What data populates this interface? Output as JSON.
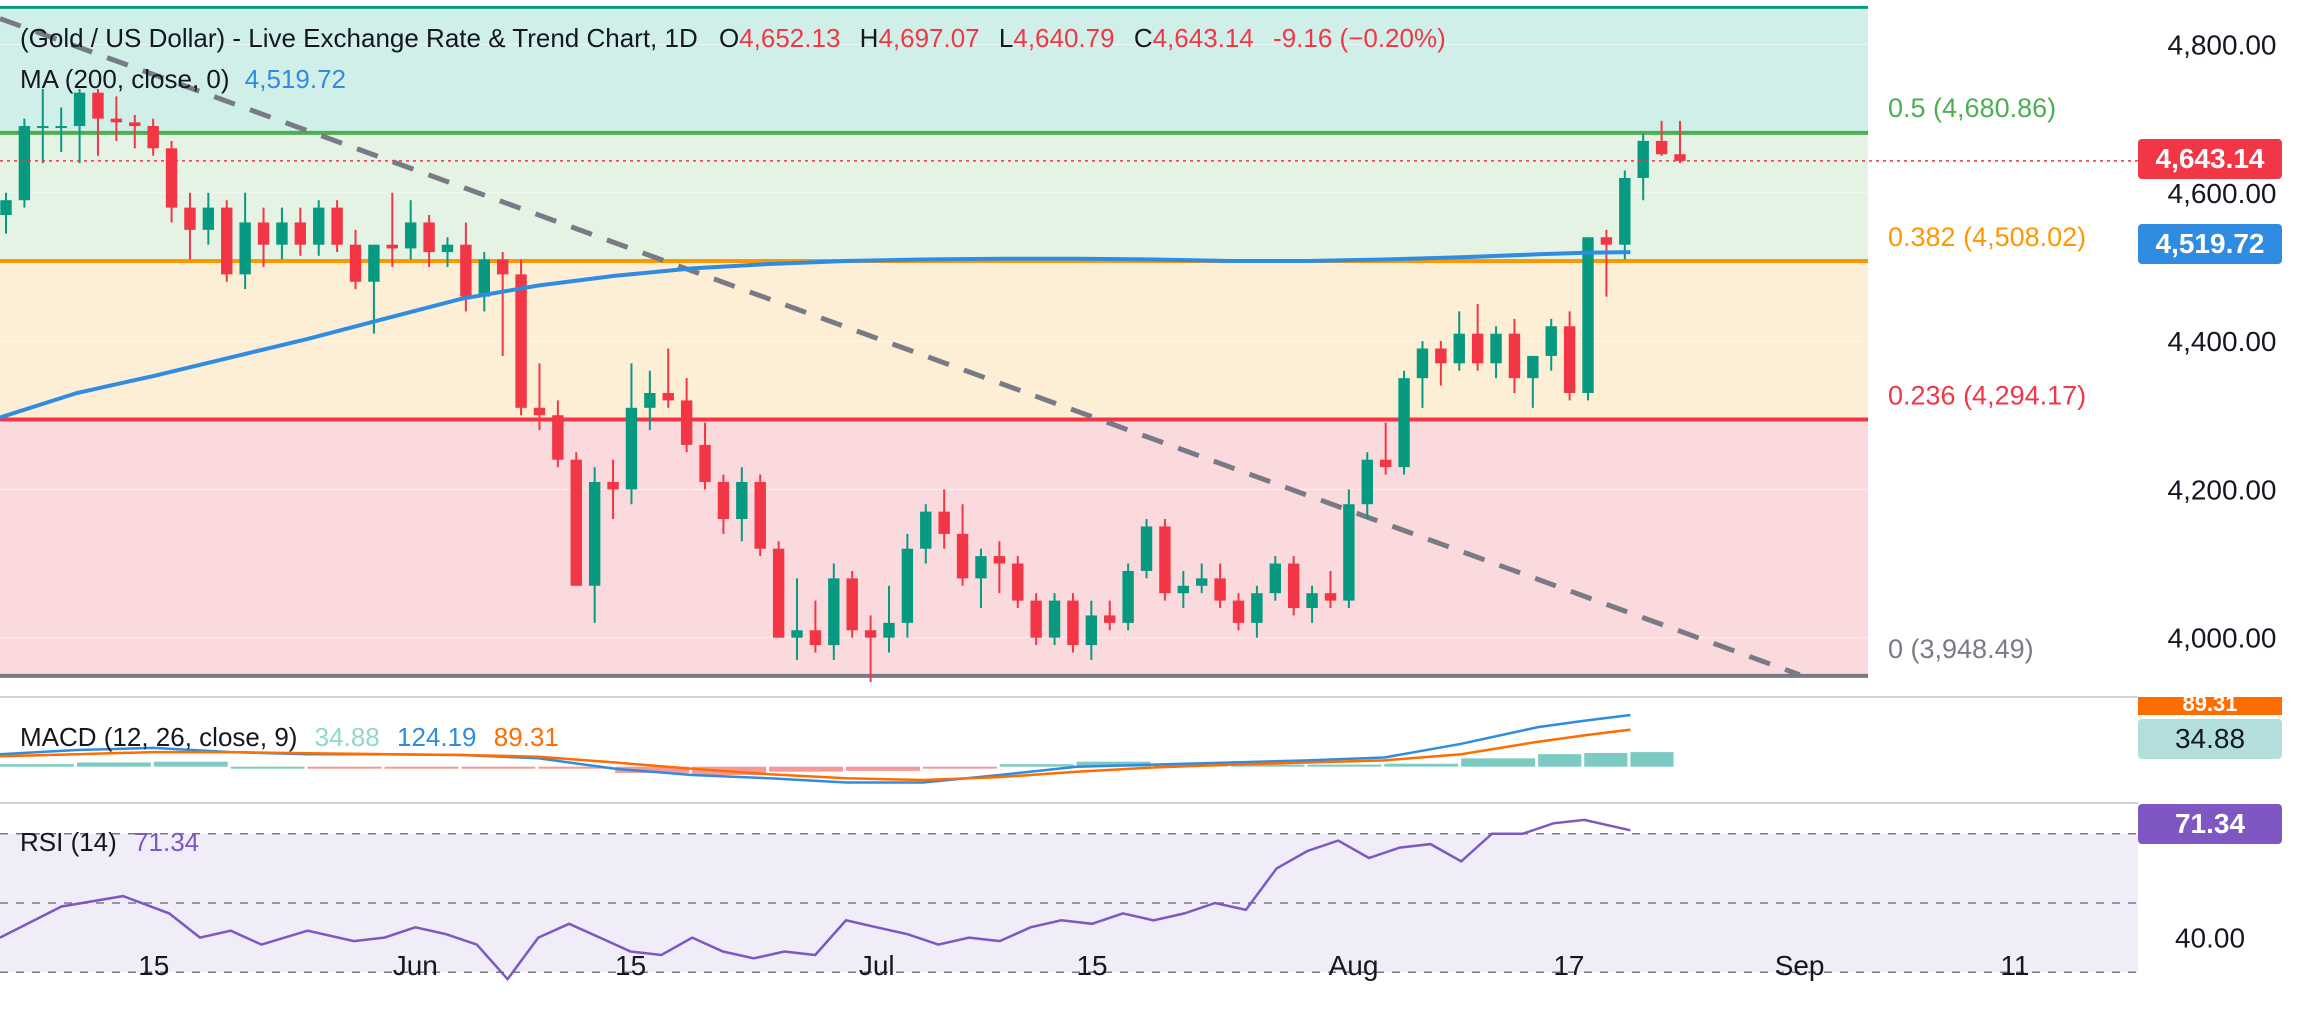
{
  "chart_data": {
    "type": "candlestick",
    "title": "(Gold / US Dollar) - Live Exchange Rate & Trend Chart, 1D",
    "ohlc_label": {
      "o_key": "O",
      "o": "4,652.13",
      "h_key": "H",
      "h": "4,697.07",
      "l_key": "L",
      "l": "4,640.79",
      "c_key": "C",
      "c": "4,643.14",
      "chg": "-9.16 (−0.20%)"
    },
    "ma_label": {
      "name": "MA (200, close, 0)",
      "value": "4,519.72"
    },
    "last_price": "4,643.14",
    "ma_last": "4,519.72",
    "price_ylim": [
      3920,
      4860
    ],
    "y_ticks": [
      "4,800.00",
      "4,600.00",
      "4,400.00",
      "4,200.00",
      "4,000.00"
    ],
    "y_tick_values": [
      4800,
      4600,
      4400,
      4200,
      4000
    ],
    "x_ticks": [
      "15",
      "Jun",
      "15",
      "Jul",
      "15",
      "Aug",
      "17",
      "Sep",
      "11"
    ],
    "x_tick_days": [
      0,
      17,
      31,
      47,
      61,
      78,
      92,
      107,
      121
    ],
    "x_range_days": [
      -10,
      129
    ],
    "fib_levels": [
      {
        "label": "0.5 (4,680.86)",
        "value": 4680.86,
        "color": "#4caf50"
      },
      {
        "label": "0.382 (4,508.02)",
        "value": 4508.02,
        "color": "#ff9800"
      },
      {
        "label": "0.236 (4,294.17)",
        "value": 4294.17,
        "color": "#f23645"
      },
      {
        "label": "0 (3,948.49)",
        "value": 3948.49,
        "color": "#787b86"
      }
    ],
    "fib_top_value": 4850,
    "fib_zone_colors": [
      "#d1efe9",
      "#e4f3e4",
      "#fdeed6",
      "#fbdadd"
    ],
    "trendline": {
      "start": [
        -10,
        4835
      ],
      "end": [
        107,
        3950
      ],
      "color": "#787b86"
    },
    "ma_series": {
      "days": [
        -10,
        -5,
        0,
        5,
        10,
        15,
        20,
        25,
        30,
        35,
        40,
        45,
        50,
        55,
        60,
        65,
        70,
        75,
        80,
        85,
        90,
        93,
        96
      ],
      "values": [
        4297,
        4330,
        4353,
        4378,
        4403,
        4430,
        4457,
        4475,
        4488,
        4498,
        4504,
        4508,
        4510,
        4511,
        4511,
        4510,
        4508,
        4508,
        4510,
        4513,
        4517,
        4519,
        4520
      ]
    },
    "candles": [
      {
        "o": 4570,
        "h": 4600,
        "l": 4545,
        "c": 4590
      },
      {
        "o": 4590,
        "h": 4700,
        "l": 4580,
        "c": 4690
      },
      {
        "o": 4690,
        "h": 4740,
        "l": 4640,
        "c": 4690
      },
      {
        "o": 4690,
        "h": 4715,
        "l": 4655,
        "c": 4690
      },
      {
        "o": 4690,
        "h": 4740,
        "l": 4640,
        "c": 4735
      },
      {
        "o": 4735,
        "h": 4740,
        "l": 4650,
        "c": 4700
      },
      {
        "o": 4700,
        "h": 4730,
        "l": 4670,
        "c": 4695
      },
      {
        "o": 4695,
        "h": 4705,
        "l": 4660,
        "c": 4690
      },
      {
        "o": 4690,
        "h": 4700,
        "l": 4650,
        "c": 4660
      },
      {
        "o": 4660,
        "h": 4670,
        "l": 4560,
        "c": 4580
      },
      {
        "o": 4580,
        "h": 4600,
        "l": 4510,
        "c": 4550
      },
      {
        "o": 4550,
        "h": 4600,
        "l": 4530,
        "c": 4580
      },
      {
        "o": 4580,
        "h": 4590,
        "l": 4480,
        "c": 4490
      },
      {
        "o": 4490,
        "h": 4600,
        "l": 4470,
        "c": 4560
      },
      {
        "o": 4560,
        "h": 4580,
        "l": 4500,
        "c": 4530
      },
      {
        "o": 4530,
        "h": 4580,
        "l": 4510,
        "c": 4560
      },
      {
        "o": 4560,
        "h": 4580,
        "l": 4515,
        "c": 4530
      },
      {
        "o": 4530,
        "h": 4590,
        "l": 4515,
        "c": 4580
      },
      {
        "o": 4580,
        "h": 4590,
        "l": 4520,
        "c": 4530
      },
      {
        "o": 4530,
        "h": 4550,
        "l": 4470,
        "c": 4480
      },
      {
        "o": 4480,
        "h": 4530,
        "l": 4410,
        "c": 4530
      },
      {
        "o": 4530,
        "h": 4600,
        "l": 4500,
        "c": 4525
      },
      {
        "o": 4525,
        "h": 4590,
        "l": 4510,
        "c": 4560
      },
      {
        "o": 4560,
        "h": 4570,
        "l": 4500,
        "c": 4520
      },
      {
        "o": 4520,
        "h": 4540,
        "l": 4500,
        "c": 4530
      },
      {
        "o": 4530,
        "h": 4560,
        "l": 4440,
        "c": 4460
      },
      {
        "o": 4460,
        "h": 4520,
        "l": 4440,
        "c": 4510
      },
      {
        "o": 4510,
        "h": 4520,
        "l": 4380,
        "c": 4490
      },
      {
        "o": 4490,
        "h": 4510,
        "l": 4300,
        "c": 4310
      },
      {
        "o": 4310,
        "h": 4370,
        "l": 4280,
        "c": 4300
      },
      {
        "o": 4300,
        "h": 4320,
        "l": 4230,
        "c": 4240
      },
      {
        "o": 4240,
        "h": 4250,
        "l": 4070,
        "c": 4070
      },
      {
        "o": 4070,
        "h": 4230,
        "l": 4020,
        "c": 4210
      },
      {
        "o": 4210,
        "h": 4240,
        "l": 4160,
        "c": 4200
      },
      {
        "o": 4200,
        "h": 4370,
        "l": 4180,
        "c": 4310
      },
      {
        "o": 4310,
        "h": 4360,
        "l": 4280,
        "c": 4330
      },
      {
        "o": 4330,
        "h": 4390,
        "l": 4310,
        "c": 4320
      },
      {
        "o": 4320,
        "h": 4350,
        "l": 4250,
        "c": 4260
      },
      {
        "o": 4260,
        "h": 4290,
        "l": 4200,
        "c": 4210
      },
      {
        "o": 4210,
        "h": 4220,
        "l": 4140,
        "c": 4160
      },
      {
        "o": 4160,
        "h": 4230,
        "l": 4130,
        "c": 4210
      },
      {
        "o": 4210,
        "h": 4220,
        "l": 4110,
        "c": 4120
      },
      {
        "o": 4120,
        "h": 4130,
        "l": 4000,
        "c": 4000
      },
      {
        "o": 4000,
        "h": 4080,
        "l": 3970,
        "c": 4010
      },
      {
        "o": 4010,
        "h": 4050,
        "l": 3980,
        "c": 3990
      },
      {
        "o": 3990,
        "h": 4100,
        "l": 3970,
        "c": 4080
      },
      {
        "o": 4080,
        "h": 4090,
        "l": 4000,
        "c": 4010
      },
      {
        "o": 4010,
        "h": 4030,
        "l": 3940,
        "c": 4000
      },
      {
        "o": 4000,
        "h": 4070,
        "l": 3980,
        "c": 4020
      },
      {
        "o": 4020,
        "h": 4140,
        "l": 4000,
        "c": 4120
      },
      {
        "o": 4120,
        "h": 4180,
        "l": 4100,
        "c": 4170
      },
      {
        "o": 4170,
        "h": 4200,
        "l": 4120,
        "c": 4140
      },
      {
        "o": 4140,
        "h": 4180,
        "l": 4070,
        "c": 4080
      },
      {
        "o": 4080,
        "h": 4120,
        "l": 4040,
        "c": 4110
      },
      {
        "o": 4110,
        "h": 4130,
        "l": 4060,
        "c": 4100
      },
      {
        "o": 4100,
        "h": 4110,
        "l": 4040,
        "c": 4050
      },
      {
        "o": 4050,
        "h": 4060,
        "l": 3990,
        "c": 4000
      },
      {
        "o": 4000,
        "h": 4060,
        "l": 3990,
        "c": 4050
      },
      {
        "o": 4050,
        "h": 4060,
        "l": 3980,
        "c": 3990
      },
      {
        "o": 3990,
        "h": 4050,
        "l": 3970,
        "c": 4030
      },
      {
        "o": 4030,
        "h": 4050,
        "l": 4010,
        "c": 4020
      },
      {
        "o": 4020,
        "h": 4100,
        "l": 4010,
        "c": 4090
      },
      {
        "o": 4090,
        "h": 4160,
        "l": 4080,
        "c": 4150
      },
      {
        "o": 4150,
        "h": 4160,
        "l": 4050,
        "c": 4060
      },
      {
        "o": 4060,
        "h": 4090,
        "l": 4040,
        "c": 4070
      },
      {
        "o": 4070,
        "h": 4100,
        "l": 4060,
        "c": 4080
      },
      {
        "o": 4080,
        "h": 4100,
        "l": 4040,
        "c": 4050
      },
      {
        "o": 4050,
        "h": 4060,
        "l": 4010,
        "c": 4020
      },
      {
        "o": 4020,
        "h": 4070,
        "l": 4000,
        "c": 4060
      },
      {
        "o": 4060,
        "h": 4110,
        "l": 4050,
        "c": 4100
      },
      {
        "o": 4100,
        "h": 4110,
        "l": 4030,
        "c": 4040
      },
      {
        "o": 4040,
        "h": 4070,
        "l": 4020,
        "c": 4060
      },
      {
        "o": 4060,
        "h": 4090,
        "l": 4040,
        "c": 4050
      },
      {
        "o": 4050,
        "h": 4200,
        "l": 4040,
        "c": 4180
      },
      {
        "o": 4180,
        "h": 4250,
        "l": 4160,
        "c": 4240
      },
      {
        "o": 4240,
        "h": 4290,
        "l": 4220,
        "c": 4230
      },
      {
        "o": 4230,
        "h": 4360,
        "l": 4220,
        "c": 4350
      },
      {
        "o": 4350,
        "h": 4400,
        "l": 4310,
        "c": 4390
      },
      {
        "o": 4390,
        "h": 4400,
        "l": 4340,
        "c": 4370
      },
      {
        "o": 4370,
        "h": 4440,
        "l": 4360,
        "c": 4410
      },
      {
        "o": 4410,
        "h": 4450,
        "l": 4360,
        "c": 4370
      },
      {
        "o": 4370,
        "h": 4420,
        "l": 4350,
        "c": 4410
      },
      {
        "o": 4410,
        "h": 4430,
        "l": 4330,
        "c": 4350
      },
      {
        "o": 4350,
        "h": 4380,
        "l": 4310,
        "c": 4380
      },
      {
        "o": 4380,
        "h": 4430,
        "l": 4360,
        "c": 4420
      },
      {
        "o": 4420,
        "h": 4440,
        "l": 4320,
        "c": 4330
      },
      {
        "o": 4330,
        "h": 4540,
        "l": 4320,
        "c": 4540
      },
      {
        "o": 4540,
        "h": 4550,
        "l": 4460,
        "c": 4530
      },
      {
        "o": 4530,
        "h": 4630,
        "l": 4510,
        "c": 4620
      },
      {
        "o": 4620,
        "h": 4680,
        "l": 4590,
        "c": 4670
      },
      {
        "o": 4670,
        "h": 4697,
        "l": 4650,
        "c": 4652
      },
      {
        "o": 4652,
        "h": 4697,
        "l": 4640,
        "c": 4643
      }
    ],
    "macd": {
      "label": "MACD (12, 26, close, 9)",
      "hist_label": "34.88",
      "macd_label": "124.19",
      "signal_label": "89.31",
      "last_hist": "34.88",
      "last_signal": "89.31",
      "ylim": [
        -80,
        160
      ],
      "days": [
        -10,
        -5,
        0,
        5,
        10,
        15,
        20,
        25,
        30,
        35,
        40,
        45,
        50,
        55,
        60,
        65,
        70,
        75,
        80,
        85,
        90,
        93,
        96
      ],
      "macd_values": [
        30,
        40,
        45,
        35,
        30,
        30,
        28,
        20,
        -5,
        -20,
        -28,
        -38,
        -38,
        -20,
        0,
        5,
        10,
        15,
        22,
        55,
        95,
        110,
        124
      ],
      "signal_values": [
        25,
        30,
        35,
        35,
        32,
        30,
        28,
        24,
        10,
        -5,
        -18,
        -28,
        -32,
        -25,
        -12,
        -2,
        5,
        10,
        15,
        30,
        60,
        75,
        89
      ],
      "hist_values": [
        6,
        10,
        12,
        0,
        -3,
        -2,
        -1,
        -4,
        -15,
        -20,
        -12,
        -10,
        -4,
        6,
        12,
        7,
        5,
        5,
        7,
        20,
        30,
        33,
        35
      ]
    },
    "rsi": {
      "label": "RSI (14)",
      "value_label": "71.34",
      "last": "71.34",
      "tick": "40.00",
      "tick_value": 40,
      "bands": [
        70,
        50,
        30
      ],
      "ylim": [
        22,
        78
      ],
      "days": [
        -10,
        -6,
        -2,
        1,
        3,
        5,
        7,
        10,
        13,
        15,
        17,
        19,
        21,
        23,
        25,
        27,
        29,
        31,
        33,
        35,
        37,
        39,
        41,
        43,
        45,
        47,
        49,
        51,
        53,
        55,
        57,
        59,
        61,
        63,
        65,
        67,
        69,
        71,
        73,
        75,
        77,
        79,
        81,
        83,
        85,
        87,
        89,
        91,
        93,
        95,
        96
      ],
      "values": [
        40,
        49,
        52,
        47,
        40,
        42,
        38,
        42,
        39,
        40,
        43,
        41,
        38,
        28,
        40,
        44,
        40,
        36,
        35,
        40,
        36,
        34,
        36,
        35,
        45,
        43,
        41,
        38,
        40,
        39,
        43,
        45,
        44,
        47,
        45,
        47,
        50,
        48,
        60,
        65,
        68,
        63,
        66,
        67,
        62,
        70,
        70,
        73,
        74,
        72,
        71
      ]
    }
  }
}
